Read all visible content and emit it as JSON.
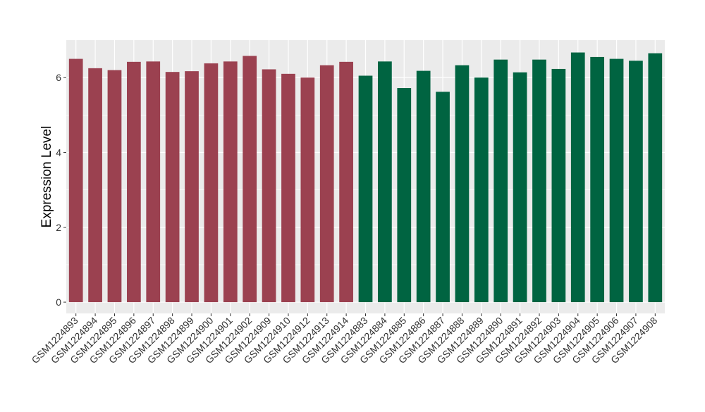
{
  "chart_data": {
    "type": "bar",
    "title": "",
    "xlabel": "",
    "ylabel": "Expression Level",
    "ylim": [
      -0.3,
      7.0
    ],
    "yticks": [
      0,
      2,
      4,
      6
    ],
    "grid": true,
    "legend": "none",
    "panel_background": "#ebebeb",
    "grid_color": "#ffffff",
    "categories": [
      "GSM1224893",
      "GSM1224894",
      "GSM1224895",
      "GSM1224896",
      "GSM1224897",
      "GSM1224898",
      "GSM1224899",
      "GSM1224900",
      "GSM1224901",
      "GSM1224902",
      "GSM1224909",
      "GSM1224910",
      "GSM1224912",
      "GSM1224913",
      "GSM1224914",
      "GSM1224883",
      "GSM1224884",
      "GSM1224885",
      "GSM1224886",
      "GSM1224887",
      "GSM1224888",
      "GSM1224889",
      "GSM1224890",
      "GSM1224891",
      "GSM1224892",
      "GSM1224903",
      "GSM1224904",
      "GSM1224905",
      "GSM1224906",
      "GSM1224907",
      "GSM1224908"
    ],
    "values": [
      6.5,
      6.25,
      6.2,
      6.42,
      6.43,
      6.15,
      6.17,
      6.38,
      6.43,
      6.58,
      6.22,
      6.1,
      6.0,
      6.33,
      6.42,
      6.05,
      6.43,
      5.72,
      6.18,
      5.62,
      6.33,
      6.0,
      6.48,
      6.14,
      6.48,
      6.23,
      6.67,
      6.55,
      6.5,
      6.45,
      6.65
    ],
    "groups": [
      {
        "color": "#9b4150",
        "count": 15
      },
      {
        "color": "#006441",
        "count": 16
      }
    ]
  }
}
